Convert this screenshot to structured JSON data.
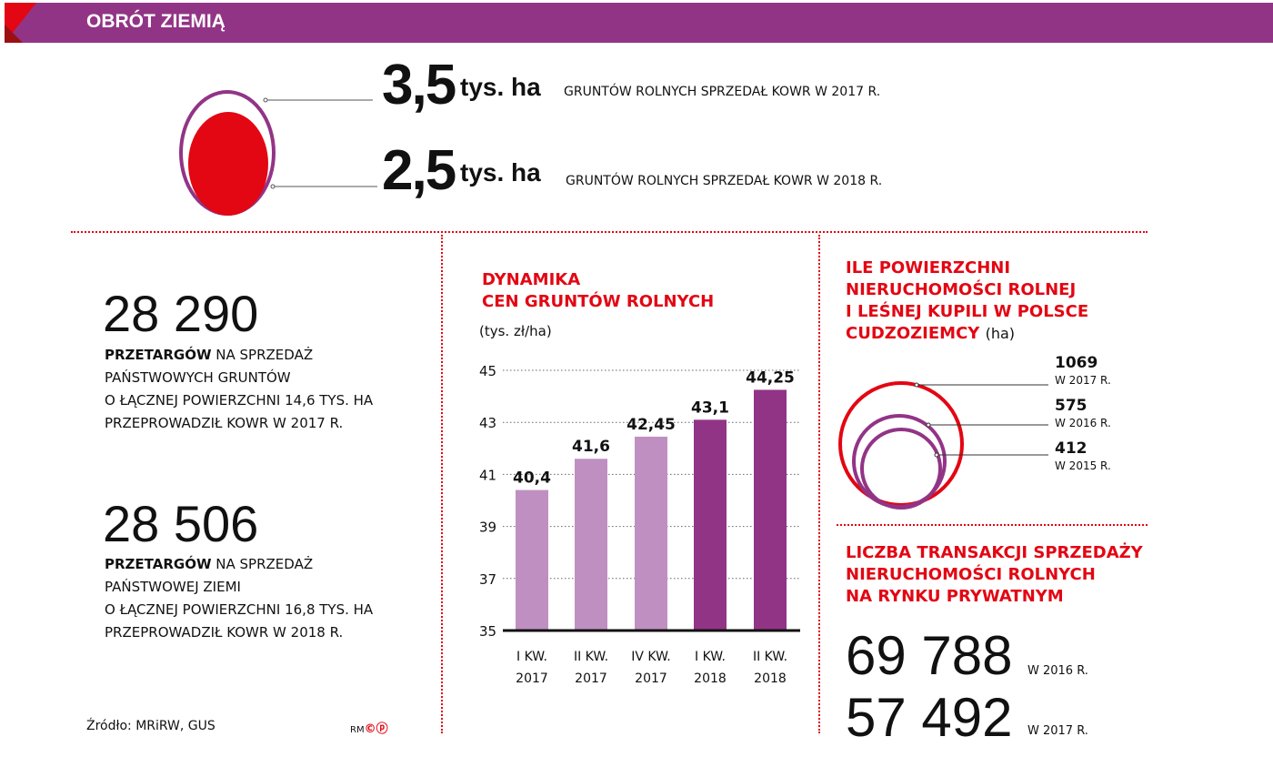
{
  "header": {
    "title": "OBRÓT ZIEMIĄ"
  },
  "top": {
    "items": [
      {
        "value": "3,5",
        "unit": "tys. ha",
        "caption": "GRUNTÓW ROLNYCH SPRZEDAŁ KOWR W 2017 R."
      },
      {
        "value": "2,5",
        "unit": "tys. ha",
        "caption": "GRUNTÓW ROLNYCH SPRZEDAŁ KOWR W 2018 R."
      }
    ]
  },
  "left": {
    "blocks": [
      {
        "number": "28 290",
        "bold": "PRZETARGÓW",
        "line1": " NA SPRZEDAŻ",
        "line2": "PAŃSTWOWYCH GRUNTÓW",
        "line3": "O ŁĄCZNEJ POWIERZCHNI 14,6 TYS. HA",
        "line4": "PRZEPROWADZIŁ KOWR W 2017 R."
      },
      {
        "number": "28 506",
        "bold": "PRZETARGÓW",
        "line1": " NA SPRZEDAŻ",
        "line2": "PAŃSTWOWEJ ZIEMI",
        "line3": "O ŁĄCZNEJ POWIERZCHNI 16,8 TYS. HA",
        "line4": "PRZEPROWADZIŁ KOWR W 2018 R."
      }
    ],
    "source": "Źródło: MRiRW, GUS",
    "logo": "RM©ⓟ"
  },
  "chart_data": {
    "type": "bar",
    "title_line1": "DYNAMIKA",
    "title_line2": "CEN GRUNTÓW ROLNYCH",
    "ylabel": "(tys. zł/ha)",
    "ylim": [
      35,
      45
    ],
    "yticks": [
      "35",
      "37",
      "39",
      "41",
      "43",
      "45"
    ],
    "categories": [
      [
        "I KW.",
        "2017"
      ],
      [
        "II KW.",
        "2017"
      ],
      [
        "IV KW.",
        "2017"
      ],
      [
        "I KW.",
        "2018"
      ],
      [
        "II KW.",
        "2018"
      ]
    ],
    "values": [
      40.4,
      41.6,
      42.45,
      43.1,
      44.25
    ],
    "labels": [
      "40,4",
      "41,6",
      "42,45",
      "43,1",
      "44,25"
    ],
    "colors": [
      "#c08fc1",
      "#c08fc1",
      "#c08fc1",
      "#923486",
      "#923486"
    ],
    "grid": true
  },
  "foreigners": {
    "title": [
      "ILE POWIERZCHNI",
      "NIERUCHOMOŚCI ROLNEJ",
      "I LEŚNEJ KUPILI W POLSCE",
      "CUDZOZIEMCY"
    ],
    "unit": "(ha)",
    "items": [
      {
        "value": "1069",
        "year": "W 2017 R.",
        "color": "#e30613"
      },
      {
        "value": "575",
        "year": "W 2016 R.",
        "color": "#923486"
      },
      {
        "value": "412",
        "year": "W 2015 R.",
        "color": "#923486"
      }
    ]
  },
  "transactions": {
    "title": [
      "LICZBA TRANSAKCJI SPRZEDAŻY",
      "NIERUCHOMOŚCI ROLNYCH",
      "NA RYNKU PRYWATNYM"
    ],
    "items": [
      {
        "value": "69 788",
        "year": "W 2016 R."
      },
      {
        "value": "57 492",
        "year": "W 2017 R."
      }
    ]
  },
  "colors": {
    "purple": "#923486",
    "red": "#e30613",
    "light_purple": "#c08fc1"
  }
}
